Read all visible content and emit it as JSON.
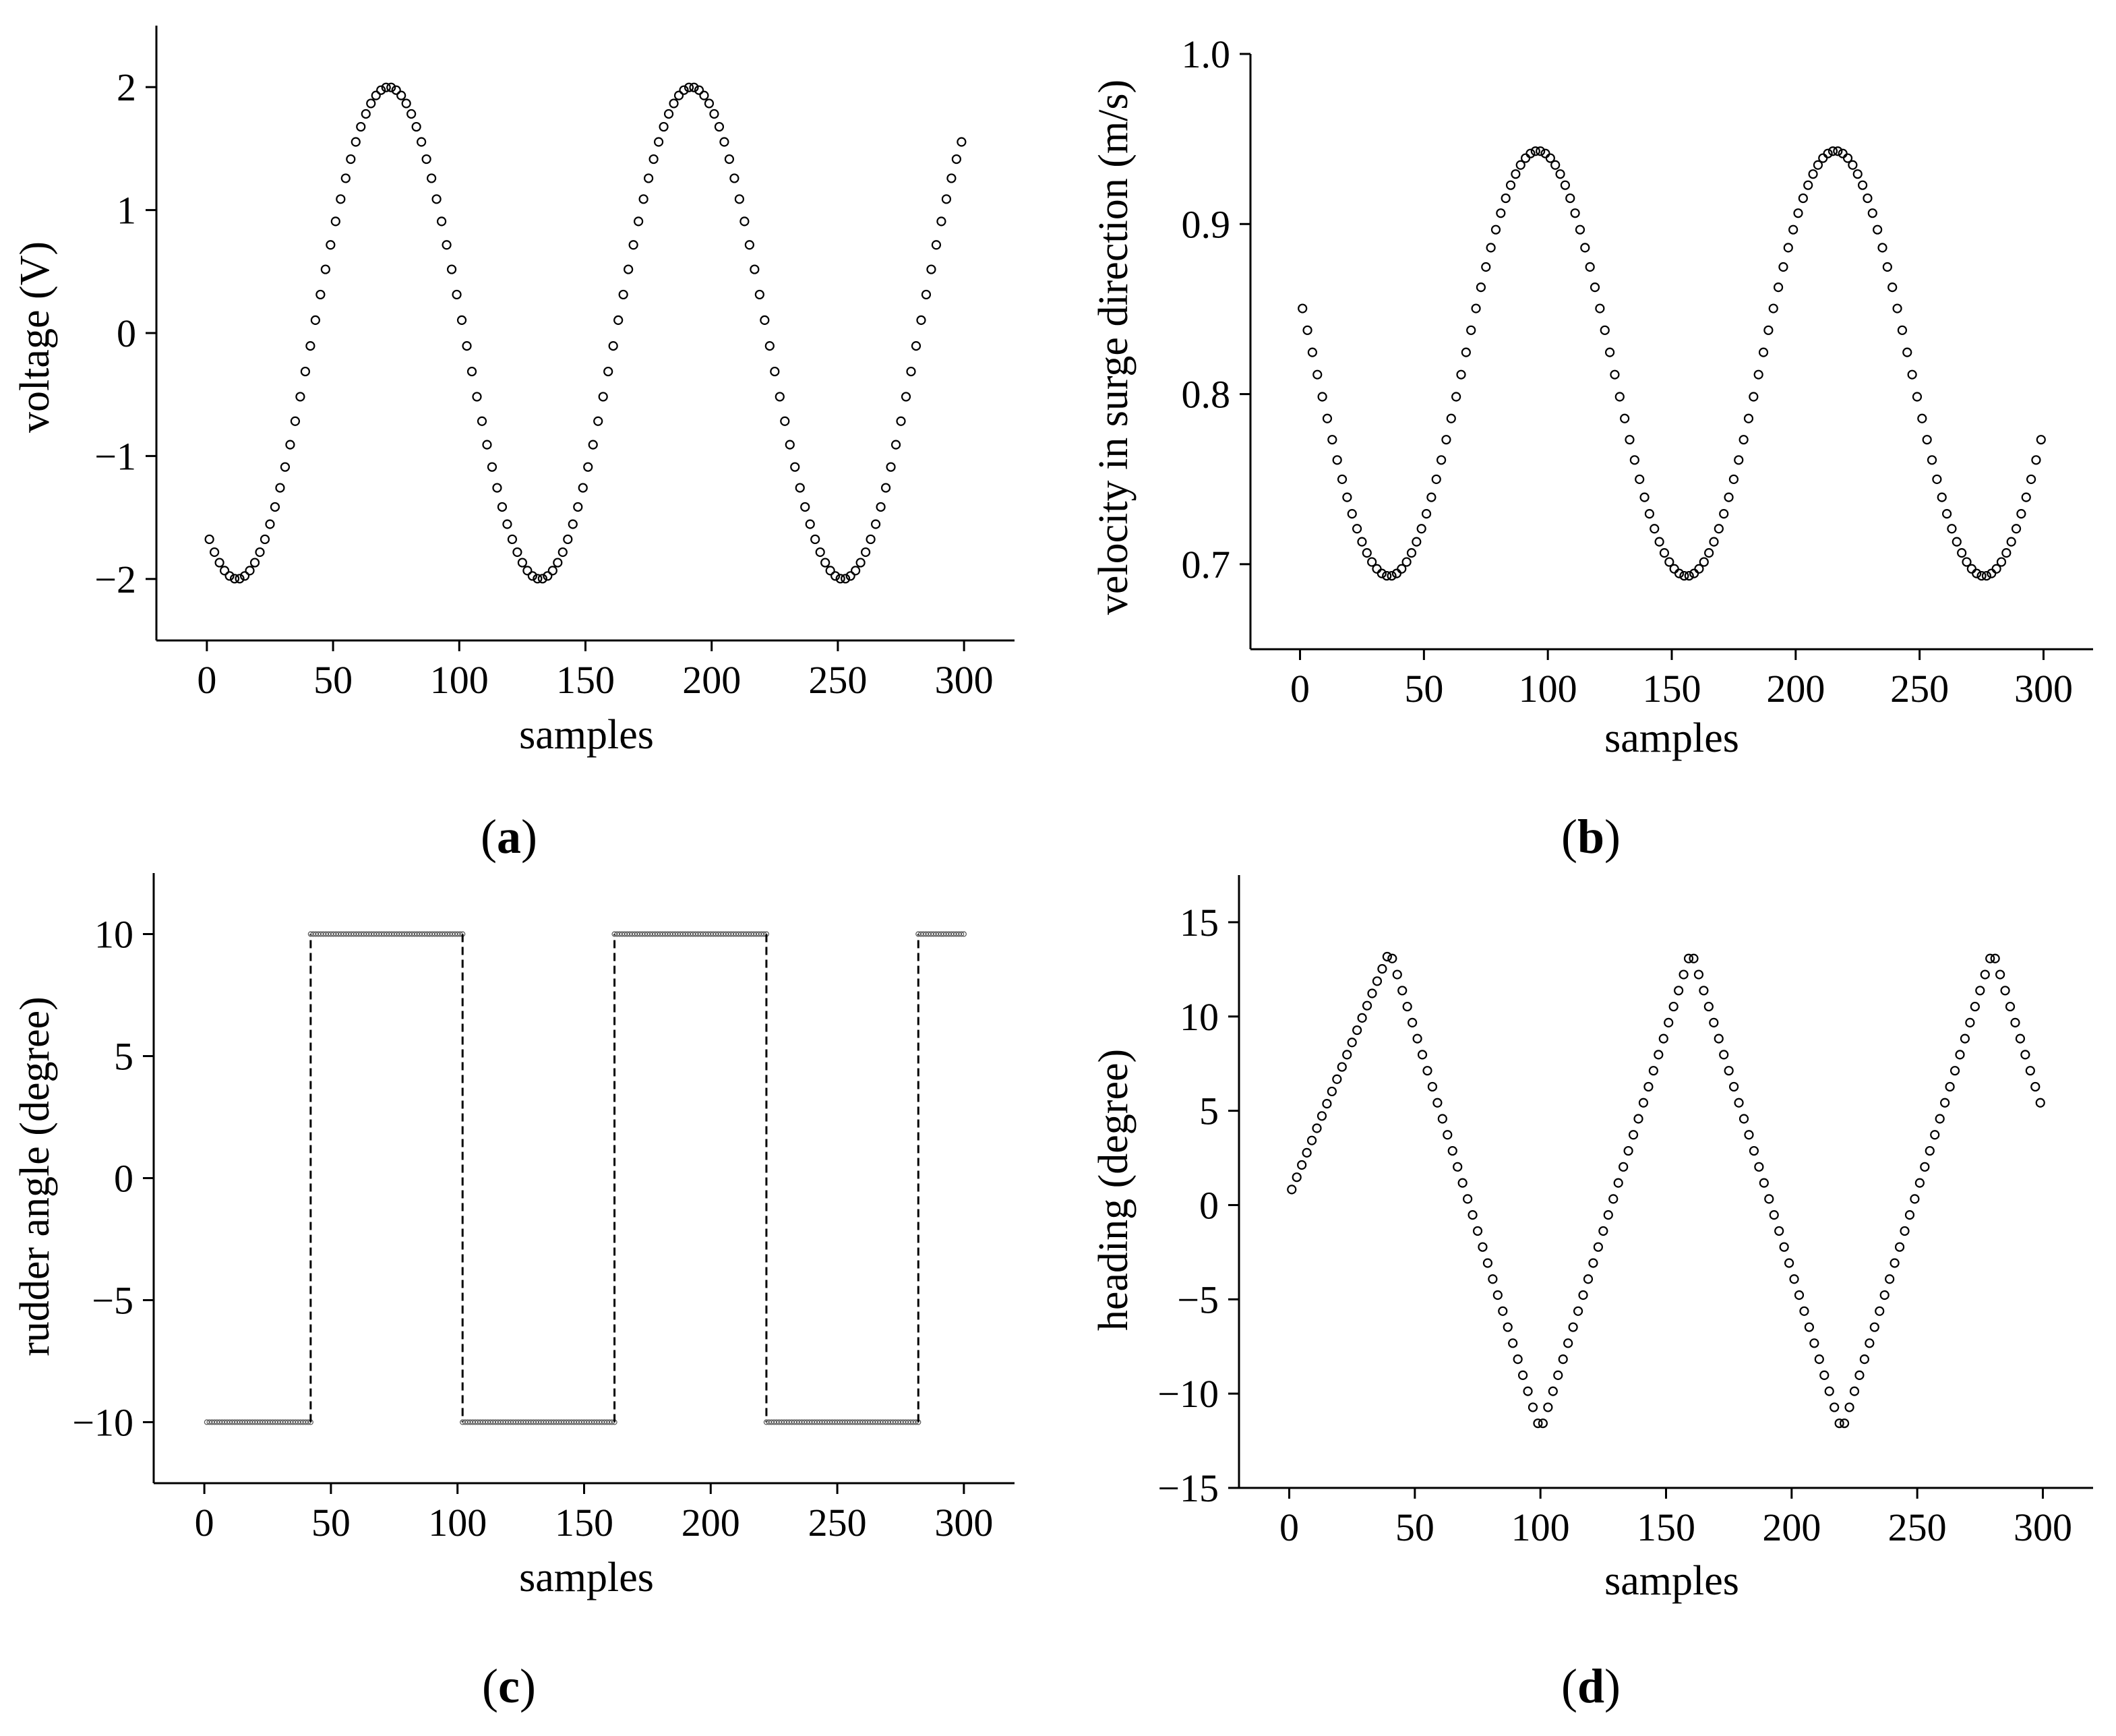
{
  "chart_data": [
    {
      "id": "a",
      "type": "scatter",
      "panel_label": "a",
      "xlabel": "samples",
      "ylabel": "voltage (V)",
      "xlim": [
        -20,
        320
      ],
      "ylim": [
        -2.5,
        2.5
      ],
      "xticks": [
        0,
        50,
        100,
        150,
        200,
        250,
        300
      ],
      "yticks": [
        -2,
        -1,
        0,
        1,
        2
      ],
      "xtick_labels": [
        "0",
        "50",
        "100",
        "150",
        "200",
        "250",
        "300"
      ],
      "ytick_labels": [
        "−2",
        "−1",
        "0",
        "1",
        "2"
      ],
      "series": [
        {
          "name": "voltage",
          "x_range": [
            1,
            300,
            2
          ],
          "function": "cosine",
          "params": {
            "amplitude": 2.0,
            "offset": 0.0,
            "period": 120,
            "peak_at": 72
          }
        }
      ]
    },
    {
      "id": "b",
      "type": "scatter",
      "panel_label": "b",
      "xlabel": "samples",
      "ylabel": "velocity in surge direction (m/s)",
      "xlim": [
        -20,
        320
      ],
      "ylim": [
        0.65,
        1.0
      ],
      "xticks": [
        0,
        50,
        100,
        150,
        200,
        250,
        300
      ],
      "yticks": [
        0.7,
        0.8,
        0.9,
        1.0
      ],
      "xtick_labels": [
        "0",
        "50",
        "100",
        "150",
        "200",
        "250",
        "300"
      ],
      "ytick_labels": [
        "0.7",
        "0.8",
        "0.9",
        "1.0"
      ],
      "series": [
        {
          "name": "surge velocity",
          "x_range": [
            1,
            300,
            2
          ],
          "function": "cosine",
          "params": {
            "amplitude": 0.125,
            "offset": 0.818,
            "period": 120,
            "peak_at": 96
          }
        }
      ]
    },
    {
      "id": "c",
      "type": "step",
      "panel_label": "c",
      "xlabel": "samples",
      "ylabel": "rudder angle (degree)",
      "xlim": [
        -20,
        320
      ],
      "ylim": [
        -12.5,
        12.5
      ],
      "xticks": [
        0,
        50,
        100,
        150,
        200,
        250,
        300
      ],
      "yticks": [
        -10,
        -5,
        0,
        5,
        10
      ],
      "xtick_labels": [
        "0",
        "50",
        "100",
        "150",
        "200",
        "250",
        "300"
      ],
      "ytick_labels": [
        "−10",
        "−5",
        "0",
        "5",
        "10"
      ],
      "series": [
        {
          "name": "rudder angle",
          "segments": [
            {
              "x_start": 1,
              "x_end": 42,
              "value": -10
            },
            {
              "x_start": 42,
              "x_end": 102,
              "value": 10
            },
            {
              "x_start": 102,
              "x_end": 162,
              "value": -10
            },
            {
              "x_start": 162,
              "x_end": 222,
              "value": 10
            },
            {
              "x_start": 222,
              "x_end": 282,
              "value": -10
            },
            {
              "x_start": 282,
              "x_end": 300,
              "value": 10
            }
          ]
        }
      ]
    },
    {
      "id": "d",
      "type": "scatter",
      "panel_label": "d",
      "xlabel": "samples",
      "ylabel": "heading (degree)",
      "xlim": [
        -20,
        320
      ],
      "ylim": [
        -15,
        17.5
      ],
      "xticks": [
        0,
        50,
        100,
        150,
        200,
        250,
        300
      ],
      "yticks": [
        -15,
        -10,
        -5,
        0,
        5,
        10,
        15
      ],
      "xtick_labels": [
        "0",
        "50",
        "100",
        "150",
        "200",
        "250",
        "300"
      ],
      "ytick_labels": [
        "−15",
        "−10",
        "−5",
        "0",
        "5",
        "10",
        "15"
      ],
      "series": [
        {
          "name": "heading",
          "x_range": [
            1,
            300,
            2
          ],
          "function": "triangle",
          "params": {
            "start_value": 0.5,
            "max": 13.5,
            "min": -12.0,
            "first_peak": 40,
            "period": 120,
            "first_trough": 100
          }
        }
      ]
    }
  ]
}
